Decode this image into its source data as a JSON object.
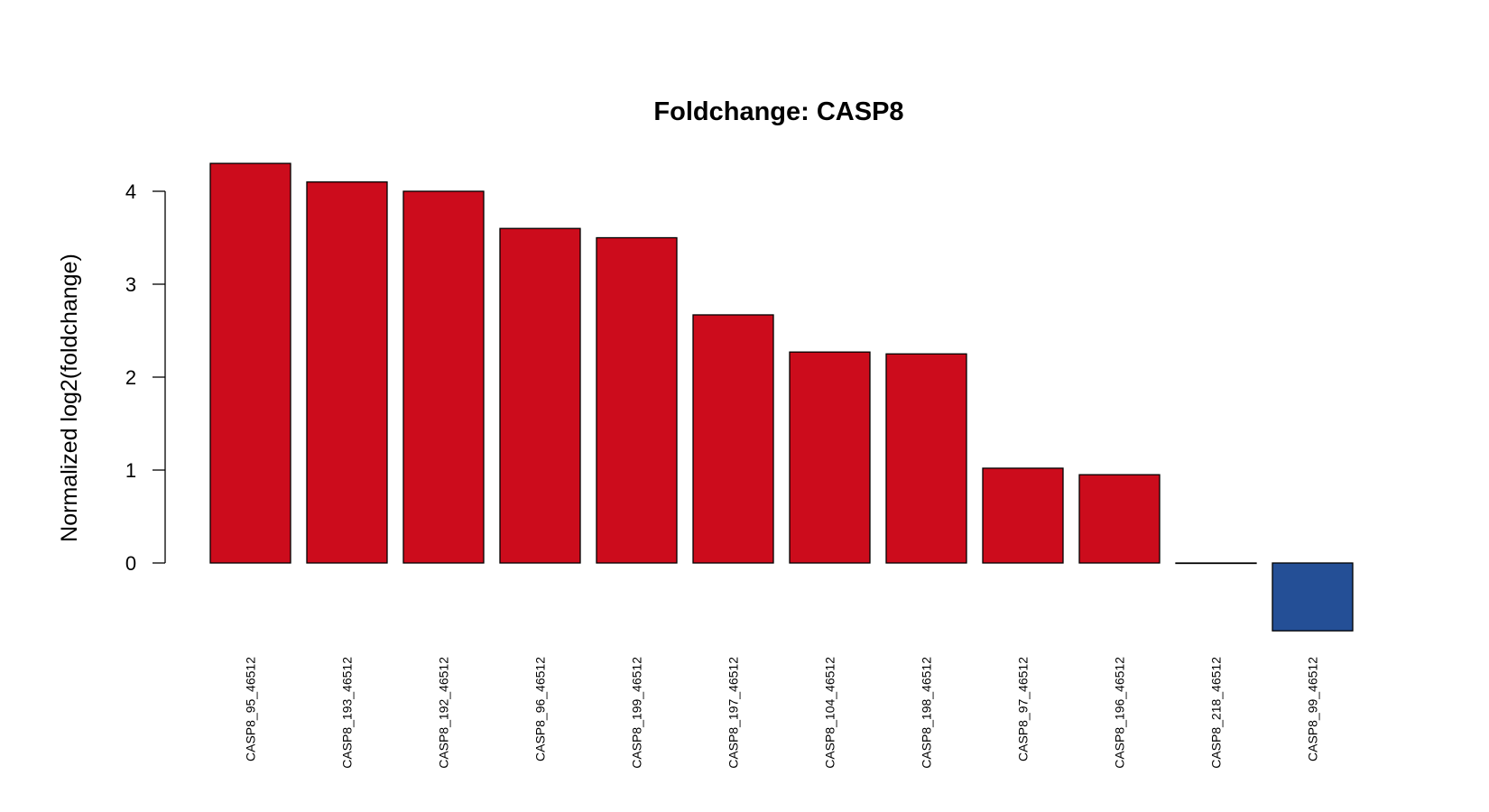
{
  "chart_data": {
    "type": "bar",
    "title": "Foldchange: CASP8",
    "xlabel": "",
    "ylabel": "Normalized log2(foldchange)",
    "ylim": [
      -0.75,
      4.3
    ],
    "yticks": [
      0,
      1,
      2,
      3,
      4
    ],
    "grid": false,
    "legend": "none",
    "colors": {
      "positive": "#CC0C1C",
      "negative": "#244F96",
      "border": "#000000"
    },
    "categories": [
      "CASP8_95_46512",
      "CASP8_193_46512",
      "CASP8_192_46512",
      "CASP8_96_46512",
      "CASP8_199_46512",
      "CASP8_197_46512",
      "CASP8_104_46512",
      "CASP8_198_46512",
      "CASP8_97_46512",
      "CASP8_196_46512",
      "CASP8_218_46512",
      "CASP8_99_46512"
    ],
    "values": [
      4.3,
      4.1,
      4.0,
      3.6,
      3.5,
      2.67,
      2.27,
      2.25,
      1.02,
      0.95,
      0.0,
      -0.73
    ]
  }
}
